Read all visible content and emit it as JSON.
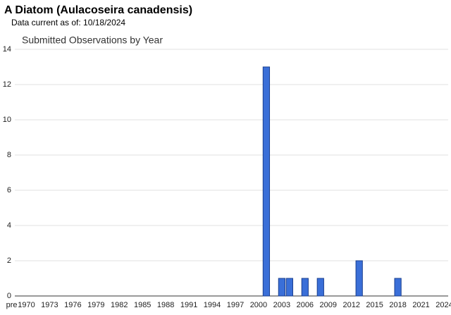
{
  "chart_data": {
    "type": "bar",
    "title": "A Diatom   (Aulacoseira canadensis)",
    "subtitle": "Data current as of: 10/18/2024",
    "chart_title": "Submitted Observations by Year",
    "categories": [
      "pre",
      "1970",
      null,
      null,
      "1973",
      null,
      null,
      "1976",
      null,
      null,
      "1979",
      null,
      null,
      "1982",
      null,
      null,
      "1985",
      null,
      null,
      "1988",
      null,
      null,
      "1991",
      null,
      null,
      "1994",
      null,
      null,
      "1997",
      null,
      null,
      "2000",
      null,
      null,
      "2003",
      null,
      null,
      "2006",
      null,
      null,
      "2009",
      null,
      null,
      "2012",
      null,
      null,
      "2015",
      null,
      null,
      "2018",
      null,
      null,
      "2021",
      null,
      null,
      "2024"
    ],
    "values": [
      0,
      0,
      0,
      0,
      0,
      0,
      0,
      0,
      0,
      0,
      0,
      0,
      0,
      0,
      0,
      0,
      0,
      0,
      0,
      0,
      0,
      0,
      0,
      0,
      0,
      0,
      0,
      0,
      0,
      0,
      0,
      0,
      13,
      0,
      1,
      1,
      0,
      1,
      0,
      1,
      0,
      0,
      0,
      0,
      2,
      0,
      0,
      0,
      0,
      1,
      0,
      0,
      0,
      0,
      0,
      0
    ],
    "color": "#3a6fd8",
    "ylim": [
      0,
      14
    ],
    "yticks": [
      0,
      2,
      4,
      6,
      8,
      10,
      12,
      14
    ],
    "grid": true
  }
}
